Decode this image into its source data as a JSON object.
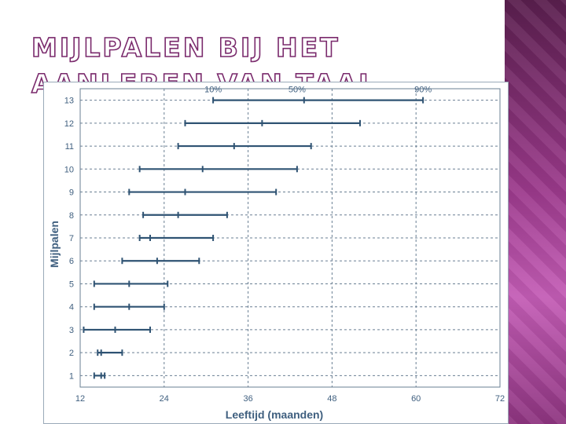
{
  "slide": {
    "title": "MIJLPALEN BIJ HET AANLEREN VAN TAAL"
  },
  "colors": {
    "accent": "#7a2a6c",
    "series": "#2f5373",
    "grid": "#6a7f93",
    "panel": "#9c3a8c"
  },
  "chart_data": {
    "type": "range",
    "xlabel": "Leeftijd (maanden)",
    "ylabel": "Mijlpalen",
    "xlim": [
      12,
      72
    ],
    "ylim": [
      0.5,
      13.5
    ],
    "x_ticks": [
      12,
      24,
      36,
      48,
      60,
      72
    ],
    "y_ticks": [
      1,
      2,
      3,
      4,
      5,
      6,
      7,
      8,
      9,
      10,
      11,
      12,
      13
    ],
    "percentile_labels": [
      {
        "label": "10%",
        "x": 31
      },
      {
        "label": "50%",
        "x": 43
      },
      {
        "label": "90%",
        "x": 61
      }
    ],
    "series": [
      {
        "milestone": 1,
        "p10": 14,
        "p50": 15,
        "p90": 15.5
      },
      {
        "milestone": 2,
        "p10": 14.5,
        "p50": 15,
        "p90": 18
      },
      {
        "milestone": 3,
        "p10": 12.5,
        "p50": 17,
        "p90": 22
      },
      {
        "milestone": 4,
        "p10": 14,
        "p50": 19,
        "p90": 24
      },
      {
        "milestone": 5,
        "p10": 14,
        "p50": 19,
        "p90": 24.5
      },
      {
        "milestone": 6,
        "p10": 18,
        "p50": 23,
        "p90": 29
      },
      {
        "milestone": 7,
        "p10": 20.5,
        "p50": 22,
        "p90": 31
      },
      {
        "milestone": 8,
        "p10": 21,
        "p50": 26,
        "p90": 33
      },
      {
        "milestone": 9,
        "p10": 19,
        "p50": 27,
        "p90": 40
      },
      {
        "milestone": 10,
        "p10": 20.5,
        "p50": 29.5,
        "p90": 43
      },
      {
        "milestone": 11,
        "p10": 26,
        "p50": 34,
        "p90": 45
      },
      {
        "milestone": 12,
        "p10": 27,
        "p50": 38,
        "p90": 52
      },
      {
        "milestone": 13,
        "p10": 31,
        "p50": 44,
        "p90": 61
      }
    ],
    "grid": true,
    "legend": "none"
  }
}
